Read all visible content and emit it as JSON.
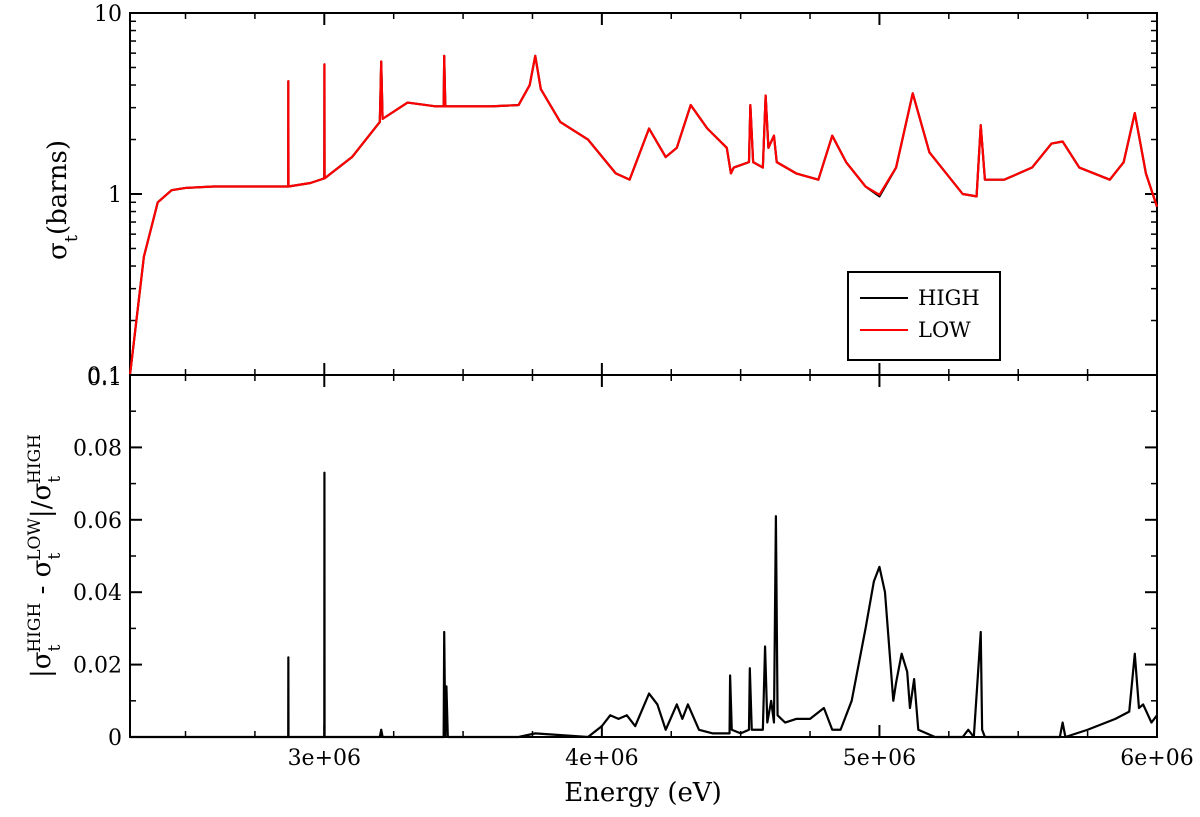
{
  "chart_data": [
    {
      "type": "line",
      "title": "",
      "xlabel": "",
      "ylabel": {
        "main": "σ",
        "sub": "t",
        "unit": "(barns)"
      },
      "yscale": "log",
      "xlim": [
        2300000,
        6000000
      ],
      "ylim": [
        0.1,
        10
      ],
      "y_ticks": [
        0.1,
        1,
        10
      ],
      "y_tick_labels": [
        "0.1",
        "1",
        "10"
      ],
      "x_ticks": [
        3000000,
        4000000,
        5000000,
        6000000
      ],
      "x_tick_labels": [
        "",
        "",
        "",
        ""
      ],
      "grid": false,
      "legend": {
        "position": "lower-right",
        "entries": [
          "HIGH",
          "LOW"
        ]
      },
      "colors": {
        "HIGH": "#000000",
        "LOW": "#ff0000"
      },
      "series": [
        {
          "name": "HIGH",
          "color": "#000000",
          "points": [
            [
              2300000,
              0.1
            ],
            [
              2350000,
              0.45
            ],
            [
              2400000,
              0.9
            ],
            [
              2450000,
              1.05
            ],
            [
              2500000,
              1.08
            ],
            [
              2600000,
              1.1
            ],
            [
              2700000,
              1.1
            ],
            [
              2870000,
              1.1
            ],
            [
              2870500,
              4.2
            ],
            [
              2871000,
              1.1
            ],
            [
              2950000,
              1.15
            ],
            [
              3000000,
              1.22
            ],
            [
              3000500,
              5.2
            ],
            [
              3001000,
              1.22
            ],
            [
              3100000,
              1.6
            ],
            [
              3200000,
              2.5
            ],
            [
              3205000,
              5.4
            ],
            [
              3210000,
              2.6
            ],
            [
              3300000,
              3.2
            ],
            [
              3400000,
              3.05
            ],
            [
              3430000,
              3.05
            ],
            [
              3432000,
              5.8
            ],
            [
              3436000,
              3.05
            ],
            [
              3600000,
              3.05
            ],
            [
              3700000,
              3.1
            ],
            [
              3740000,
              4.0
            ],
            [
              3760000,
              5.8
            ],
            [
              3780000,
              3.8
            ],
            [
              3850000,
              2.5
            ],
            [
              3950000,
              2.0
            ],
            [
              4050000,
              1.3
            ],
            [
              4100000,
              1.2
            ],
            [
              4170000,
              2.3
            ],
            [
              4230000,
              1.6
            ],
            [
              4270000,
              1.8
            ],
            [
              4320000,
              3.1
            ],
            [
              4380000,
              2.3
            ],
            [
              4450000,
              1.8
            ],
            [
              4465000,
              1.3
            ],
            [
              4475000,
              1.4
            ],
            [
              4530000,
              1.5
            ],
            [
              4535000,
              3.1
            ],
            [
              4545000,
              1.5
            ],
            [
              4580000,
              1.4
            ],
            [
              4590000,
              3.5
            ],
            [
              4600000,
              1.8
            ],
            [
              4620000,
              2.1
            ],
            [
              4630000,
              1.5
            ],
            [
              4700000,
              1.3
            ],
            [
              4780000,
              1.2
            ],
            [
              4830000,
              2.1
            ],
            [
              4880000,
              1.5
            ],
            [
              4950000,
              1.1
            ],
            [
              5000000,
              0.97
            ],
            [
              5060000,
              1.4
            ],
            [
              5120000,
              3.6
            ],
            [
              5180000,
              1.7
            ],
            [
              5300000,
              1.0
            ],
            [
              5350000,
              0.97
            ],
            [
              5365000,
              2.4
            ],
            [
              5380000,
              1.2
            ],
            [
              5450000,
              1.2
            ],
            [
              5550000,
              1.4
            ],
            [
              5620000,
              1.9
            ],
            [
              5660000,
              1.95
            ],
            [
              5720000,
              1.4
            ],
            [
              5830000,
              1.2
            ],
            [
              5880000,
              1.5
            ],
            [
              5920000,
              2.8
            ],
            [
              5960000,
              1.3
            ],
            [
              6000000,
              0.85
            ]
          ]
        },
        {
          "name": "LOW",
          "color": "#ff0000",
          "points": [
            [
              2300000,
              0.1
            ],
            [
              2350000,
              0.45
            ],
            [
              2400000,
              0.9
            ],
            [
              2450000,
              1.05
            ],
            [
              2500000,
              1.08
            ],
            [
              2600000,
              1.1
            ],
            [
              2700000,
              1.1
            ],
            [
              2870000,
              1.1
            ],
            [
              2870500,
              4.2
            ],
            [
              2871000,
              1.1
            ],
            [
              2950000,
              1.15
            ],
            [
              3000000,
              1.22
            ],
            [
              3000500,
              5.2
            ],
            [
              3001000,
              1.22
            ],
            [
              3100000,
              1.6
            ],
            [
              3200000,
              2.5
            ],
            [
              3205000,
              5.4
            ],
            [
              3210000,
              2.6
            ],
            [
              3300000,
              3.2
            ],
            [
              3400000,
              3.05
            ],
            [
              3430000,
              3.05
            ],
            [
              3432000,
              5.8
            ],
            [
              3436000,
              3.05
            ],
            [
              3600000,
              3.05
            ],
            [
              3700000,
              3.1
            ],
            [
              3740000,
              4.0
            ],
            [
              3760000,
              5.8
            ],
            [
              3780000,
              3.8
            ],
            [
              3850000,
              2.5
            ],
            [
              3950000,
              2.0
            ],
            [
              4050000,
              1.3
            ],
            [
              4100000,
              1.2
            ],
            [
              4170000,
              2.3
            ],
            [
              4230000,
              1.6
            ],
            [
              4270000,
              1.8
            ],
            [
              4320000,
              3.1
            ],
            [
              4380000,
              2.3
            ],
            [
              4450000,
              1.8
            ],
            [
              4465000,
              1.3
            ],
            [
              4475000,
              1.4
            ],
            [
              4530000,
              1.5
            ],
            [
              4535000,
              3.1
            ],
            [
              4545000,
              1.5
            ],
            [
              4580000,
              1.4
            ],
            [
              4590000,
              3.5
            ],
            [
              4600000,
              1.8
            ],
            [
              4620000,
              2.1
            ],
            [
              4630000,
              1.5
            ],
            [
              4700000,
              1.3
            ],
            [
              4780000,
              1.2
            ],
            [
              4830000,
              2.1
            ],
            [
              4880000,
              1.5
            ],
            [
              4950000,
              1.1
            ],
            [
              5000000,
              0.99
            ],
            [
              5060000,
              1.4
            ],
            [
              5120000,
              3.6
            ],
            [
              5180000,
              1.7
            ],
            [
              5300000,
              1.0
            ],
            [
              5350000,
              0.97
            ],
            [
              5365000,
              2.4
            ],
            [
              5380000,
              1.2
            ],
            [
              5450000,
              1.2
            ],
            [
              5550000,
              1.4
            ],
            [
              5620000,
              1.9
            ],
            [
              5660000,
              1.95
            ],
            [
              5720000,
              1.4
            ],
            [
              5830000,
              1.2
            ],
            [
              5880000,
              1.5
            ],
            [
              5920000,
              2.8
            ],
            [
              5960000,
              1.3
            ],
            [
              6000000,
              0.85
            ]
          ]
        }
      ]
    },
    {
      "type": "line",
      "title": "",
      "xlabel": "Energy (eV)",
      "ylabel": "|σ_t^HIGH - σ_t^LOW|/σ_t^HIGH",
      "yscale": "linear",
      "xlim": [
        2300000,
        6000000
      ],
      "ylim": [
        0,
        0.1
      ],
      "y_ticks": [
        0,
        0.02,
        0.04,
        0.06,
        0.08,
        0.1
      ],
      "y_tick_labels": [
        "0",
        "0.02",
        "0.04",
        "0.06",
        "0.08",
        "0.1"
      ],
      "x_ticks": [
        3000000,
        4000000,
        5000000,
        6000000
      ],
      "x_tick_labels": [
        "3e+06",
        "4e+06",
        "5e+06",
        "6e+06"
      ],
      "grid": false,
      "series": [
        {
          "color": "#000000",
          "points": [
            [
              2300000,
              0
            ],
            [
              2870000,
              0
            ],
            [
              2870500,
              0.022
            ],
            [
              2871000,
              0
            ],
            [
              3000000,
              0
            ],
            [
              3000500,
              0.073
            ],
            [
              3001000,
              0
            ],
            [
              3200000,
              0
            ],
            [
              3205000,
              0.002
            ],
            [
              3210000,
              0
            ],
            [
              3430000,
              0
            ],
            [
              3432000,
              0.029
            ],
            [
              3436000,
              0
            ],
            [
              3440000,
              0.014
            ],
            [
              3445000,
              0
            ],
            [
              3700000,
              0
            ],
            [
              3760000,
              0.001
            ],
            [
              3950000,
              0
            ],
            [
              4000000,
              0.003
            ],
            [
              4030000,
              0.006
            ],
            [
              4060000,
              0.005
            ],
            [
              4090000,
              0.006
            ],
            [
              4120000,
              0.003
            ],
            [
              4170000,
              0.012
            ],
            [
              4200000,
              0.009
            ],
            [
              4230000,
              0.002
            ],
            [
              4270000,
              0.009
            ],
            [
              4290000,
              0.005
            ],
            [
              4310000,
              0.009
            ],
            [
              4350000,
              0.002
            ],
            [
              4400000,
              0.001
            ],
            [
              4460000,
              0.001
            ],
            [
              4462000,
              0.017
            ],
            [
              4468000,
              0.002
            ],
            [
              4500000,
              0.001
            ],
            [
              4530000,
              0.002
            ],
            [
              4533000,
              0.019
            ],
            [
              4540000,
              0.002
            ],
            [
              4580000,
              0.002
            ],
            [
              4588000,
              0.025
            ],
            [
              4596000,
              0.004
            ],
            [
              4610000,
              0.01
            ],
            [
              4620000,
              0.004
            ],
            [
              4627000,
              0.061
            ],
            [
              4633000,
              0.006
            ],
            [
              4660000,
              0.004
            ],
            [
              4700000,
              0.005
            ],
            [
              4750000,
              0.005
            ],
            [
              4800000,
              0.008
            ],
            [
              4830000,
              0.002
            ],
            [
              4860000,
              0.002
            ],
            [
              4900000,
              0.01
            ],
            [
              4950000,
              0.03
            ],
            [
              4980000,
              0.043
            ],
            [
              5000000,
              0.047
            ],
            [
              5020000,
              0.04
            ],
            [
              5040000,
              0.02
            ],
            [
              5050000,
              0.01
            ],
            [
              5060000,
              0.015
            ],
            [
              5080000,
              0.023
            ],
            [
              5100000,
              0.018
            ],
            [
              5110000,
              0.008
            ],
            [
              5125000,
              0.016
            ],
            [
              5140000,
              0.002
            ],
            [
              5200000,
              0
            ],
            [
              5300000,
              0
            ],
            [
              5320000,
              0.002
            ],
            [
              5340000,
              0
            ],
            [
              5365000,
              0.029
            ],
            [
              5370000,
              0.002
            ],
            [
              5380000,
              0
            ],
            [
              5650000,
              0
            ],
            [
              5660000,
              0.004
            ],
            [
              5670000,
              0
            ],
            [
              5750000,
              0.002
            ],
            [
              5850000,
              0.005
            ],
            [
              5900000,
              0.007
            ],
            [
              5920000,
              0.023
            ],
            [
              5935000,
              0.008
            ],
            [
              5950000,
              0.009
            ],
            [
              5980000,
              0.004
            ],
            [
              6000000,
              0.006
            ]
          ]
        }
      ]
    }
  ]
}
